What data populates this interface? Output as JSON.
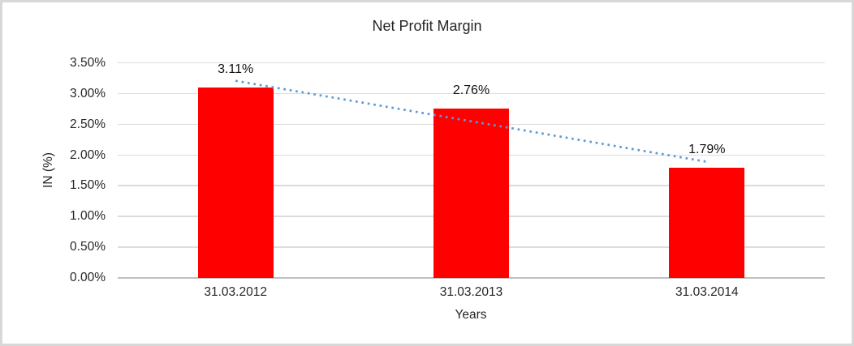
{
  "chart_data": {
    "type": "bar",
    "title": "Net Profit Margin",
    "xlabel": "Years",
    "ylabel": "IN (%)",
    "categories": [
      "31.03.2012",
      "31.03.2013",
      "31.03.2014"
    ],
    "values": [
      3.11,
      2.76,
      1.79
    ],
    "data_labels": [
      "3.11%",
      "2.76%",
      "1.79%"
    ],
    "ylim": [
      0,
      3.5
    ],
    "ytick_step": 0.5,
    "ytick_labels": [
      "0.00%",
      "0.50%",
      "1.00%",
      "1.50%",
      "2.00%",
      "2.50%",
      "3.00%",
      "3.50%"
    ],
    "grid": true,
    "legend": "none",
    "bar_color": "#FF0000",
    "trendline": {
      "type": "linear",
      "style": "dotted",
      "color": "#5B9BD5",
      "endpoint_values": [
        3.213,
        1.893
      ]
    },
    "colors": {
      "gridline": "#dcdcdc",
      "axis_line": "#c0c0c0",
      "text": "#262626",
      "frame_border": "#d8d8d8",
      "background": "#ffffff"
    }
  }
}
